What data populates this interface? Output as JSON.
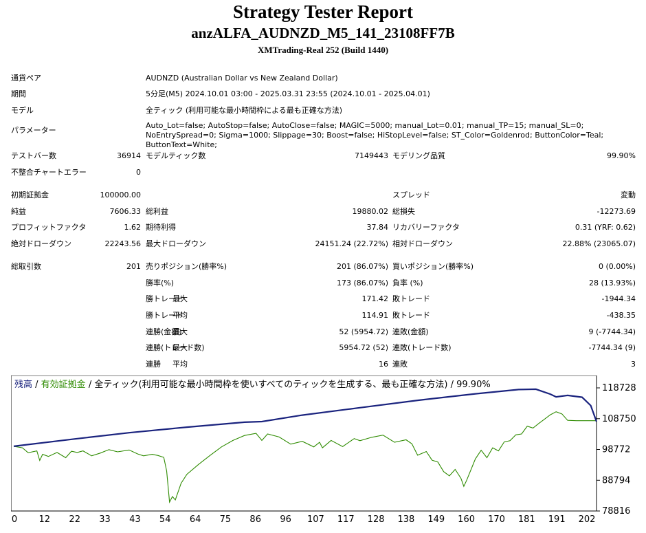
{
  "header": {
    "title": "Strategy Tester Report",
    "subtitle": "anzALFA_AUDNZD_M5_141_23108FF7B",
    "server": "XMTrading-Real 252 (Build 1440)"
  },
  "info": {
    "symbol_label": "通貨ペア",
    "symbol_value": "AUDNZD (Australian Dollar vs New Zealand Dollar)",
    "period_label": "期間",
    "period_value": "5分足(M5) 2024.10.01 03:00 - 2025.03.31 23:55 (2024.10.01 - 2025.04.01)",
    "model_label": "モデル",
    "model_value": "全ティック (利用可能な最小時間枠による最も正確な方法)",
    "params_label": "パラメーター",
    "params_value": "Auto_Lot=false; AutoStop=false; AutoClose=false; MAGIC=5000; manual_Lot=0.01; manual_TP=15; manual_SL=0; NoEntrySpread=0; Sigma=1000; Slippage=30; Boost=false; HiStopLevel=false; ST_Color=Goldenrod; ButtonColor=Teal; ButtonText=White;"
  },
  "stats": {
    "bars_label": "テストバー数",
    "bars_value": "36914",
    "ticks_label": "モデルティック数",
    "ticks_value": "7149443",
    "quality_label": "モデリング品質",
    "quality_value": "99.90%",
    "mismatch_label": "不整合チャートエラー",
    "mismatch_value": "0",
    "deposit_label": "初期証拠金",
    "deposit_value": "100000.00",
    "spread_label": "スプレッド",
    "spread_value": "変動",
    "net_label": "純益",
    "net_value": "7606.33",
    "gross_profit_label": "総利益",
    "gross_profit_value": "19880.02",
    "gross_loss_label": "総損失",
    "gross_loss_value": "-12273.69",
    "pf_label": "プロフィットファクタ",
    "pf_value": "1.62",
    "expected_label": "期待利得",
    "expected_value": "37.84",
    "recovery_label": "リカバリーファクタ",
    "recovery_value": "0.31 (YRF: 0.62)",
    "abs_dd_label": "絶対ドローダウン",
    "abs_dd_value": "22243.56",
    "max_dd_label": "最大ドローダウン",
    "max_dd_value": "24151.24 (22.72%)",
    "rel_dd_label": "相対ドローダウン",
    "rel_dd_value": "22.88% (23065.07)",
    "trades_label": "総取引数",
    "trades_value": "201",
    "short_label": "売りポジション(勝率%)",
    "short_value": "201 (86.07%)",
    "long_label": "買いポジション(勝率%)",
    "long_value": "0 (0.00%)",
    "winrate_label": "勝率(%)",
    "winrate_value": "173 (86.07%)",
    "lossrate_label": "負率 (%)",
    "lossrate_value": "28 (13.93%)",
    "max_prefix": "最大",
    "avg_prefix": "平均",
    "max_win_label": "勝トレード",
    "max_win_value": "171.42",
    "max_loss_label": "敗トレード",
    "max_loss_value": "-1944.34",
    "avg_win_label": "勝トレード",
    "avg_win_value": "114.91",
    "avg_loss_label": "敗トレード",
    "avg_loss_value": "-438.35",
    "cons_wins_label": "連勝(金額)",
    "cons_wins_value": "52 (5954.72)",
    "cons_losses_label": "連敗(金額)",
    "cons_losses_value": "9 (-7744.34)",
    "cons_profit_label": "連勝(トレード数)",
    "cons_profit_value": "5954.72 (52)",
    "cons_loss_label": "連敗(トレード数)",
    "cons_loss_value": "-7744.34 (9)",
    "avg_cons_win_label": "連勝",
    "avg_cons_win_value": "16",
    "avg_cons_loss_label": "連敗",
    "avg_cons_loss_value": "3"
  },
  "chart_data": {
    "type": "line",
    "legend_balance": "残高",
    "legend_sep1": " / ",
    "legend_equity": "有効証拠金",
    "legend_rest": " / 全ティック(利用可能な最小時間枠を使いすべてのティックを生成する、最も正確な方法) / 99.90%",
    "x_ticks": [
      "0",
      "12",
      "22",
      "33",
      "43",
      "54",
      "64",
      "75",
      "86",
      "96",
      "107",
      "117",
      "128",
      "138",
      "149",
      "160",
      "170",
      "181",
      "191",
      "202"
    ],
    "y_ticks": [
      "118728",
      "108750",
      "98772",
      "88794",
      "78816"
    ],
    "ylim": [
      78816,
      118728
    ],
    "xlim": [
      0,
      202
    ],
    "colors": {
      "balance": "#1a237e",
      "equity": "#2e8b00"
    },
    "series": [
      {
        "name": "残高",
        "x": [
          0,
          20,
          40,
          60,
          80,
          86,
          100,
          120,
          140,
          160,
          175,
          181,
          186,
          188,
          192,
          197,
          200,
          202
        ],
        "values": [
          99800,
          102050,
          104200,
          106000,
          107600,
          107800,
          109900,
          112300,
          114700,
          116800,
          118200,
          118300,
          116700,
          115800,
          116300,
          115700,
          113000,
          107800
        ]
      },
      {
        "name": "有効証拠金",
        "x": [
          0,
          3,
          5,
          8,
          9,
          10,
          12,
          15,
          18,
          20,
          22,
          24,
          27,
          30,
          33,
          36,
          40,
          43,
          45,
          48,
          50,
          52,
          53,
          54,
          55,
          56,
          58,
          60,
          64,
          68,
          72,
          76,
          80,
          84,
          86,
          88,
          92,
          96,
          100,
          104,
          106,
          107,
          110,
          114,
          118,
          120,
          124,
          128,
          132,
          136,
          138,
          140,
          143,
          145,
          147,
          149,
          151,
          153,
          155,
          156,
          157,
          160,
          162,
          164,
          166,
          168,
          170,
          172,
          174,
          176,
          178,
          180,
          182,
          184,
          186,
          188,
          190,
          192,
          195,
          197,
          200,
          202
        ],
        "values": [
          99800,
          99300,
          97700,
          98300,
          95200,
          97200,
          96500,
          97800,
          96100,
          98200,
          97800,
          98300,
          96700,
          97600,
          98700,
          98000,
          98600,
          97300,
          96700,
          97200,
          96800,
          96200,
          91800,
          81700,
          83500,
          82400,
          87800,
          90700,
          93900,
          96800,
          99600,
          101700,
          103300,
          104000,
          101700,
          103800,
          102800,
          100500,
          101400,
          99600,
          101100,
          99300,
          101700,
          99700,
          102300,
          101600,
          102700,
          103400,
          101100,
          101900,
          100600,
          96900,
          98100,
          95300,
          94700,
          91600,
          90200,
          92300,
          89400,
          86800,
          88800,
          95700,
          98500,
          96100,
          99300,
          98300,
          101200,
          101600,
          103500,
          103800,
          106300,
          105700,
          107200,
          108600,
          110000,
          111000,
          110300,
          108200,
          108100,
          108100,
          108100,
          108100
        ]
      }
    ]
  }
}
